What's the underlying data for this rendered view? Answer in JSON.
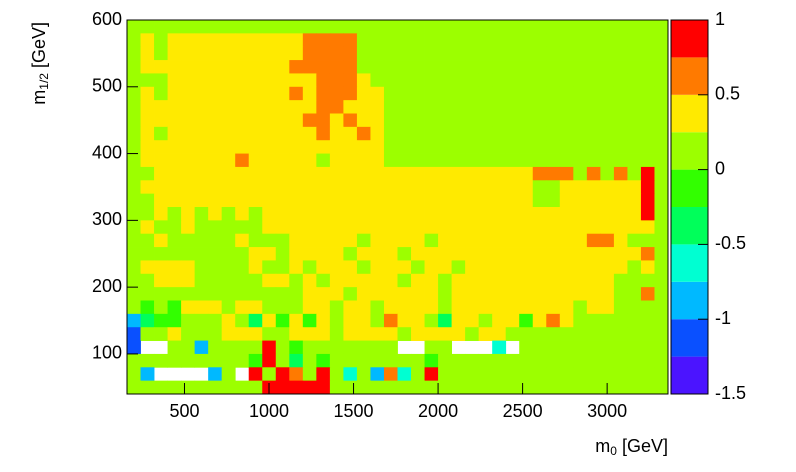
{
  "chart_data": {
    "type": "heatmap",
    "xlabel": {
      "text": "m",
      "sub": "0",
      "suffix": "[GeV]"
    },
    "ylabel": {
      "text": "m",
      "sub": "1/2",
      "suffix": "[GeV]"
    },
    "xlim": [
      160,
      3360
    ],
    "ylim": [
      40,
      600
    ],
    "xticks": [
      500,
      1000,
      1500,
      2000,
      2500,
      3000
    ],
    "yticks": [
      100,
      200,
      300,
      400,
      500,
      600
    ],
    "zlim": [
      -1.5,
      1
    ],
    "zticks": [
      -1.5,
      -1,
      -0.5,
      0,
      0.5,
      1
    ],
    "colors": [
      "#4b14ff",
      "#0a50ff",
      "#00b9ff",
      "#00ffd2",
      "#00ff5a",
      "#32ff00",
      "#9cff00",
      "#ffea00",
      "#ff7a00",
      "#ff0000"
    ],
    "z": [
      [
        0.1,
        0.1,
        0.1,
        0.1,
        0.1,
        0.1,
        0.1,
        0.1,
        0.1,
        0.1,
        0.1,
        0.1,
        0.1,
        0.1,
        0.1,
        0.1,
        0.1,
        0.1,
        0.1,
        0.1,
        0.1,
        0.1,
        0.1,
        0.1,
        0.1,
        0.1,
        0.1,
        0.1,
        0.1,
        0.1,
        0.1,
        0.1,
        0.1,
        0.1,
        0.1,
        0.1,
        0.1,
        0.1,
        0.1,
        0.1
      ],
      [
        0.1,
        0.4,
        0.1,
        0.4,
        0.4,
        0.4,
        0.4,
        0.4,
        0.4,
        0.4,
        0.4,
        0.4,
        0.4,
        0.6,
        0.6,
        0.6,
        0.6,
        0.1,
        0.1,
        0.1,
        0.1,
        0.1,
        0.1,
        0.1,
        0.1,
        0.1,
        0.1,
        0.1,
        0.1,
        0.1,
        0.1,
        0.1,
        0.1,
        0.1,
        0.1,
        0.1,
        0.1,
        0.1,
        0.1,
        0.1
      ],
      [
        0.1,
        0.4,
        0.1,
        0.4,
        0.4,
        0.4,
        0.4,
        0.4,
        0.4,
        0.4,
        0.4,
        0.4,
        0.4,
        0.6,
        0.6,
        0.6,
        0.6,
        0.1,
        0.1,
        0.1,
        0.1,
        0.1,
        0.1,
        0.1,
        0.1,
        0.1,
        0.1,
        0.1,
        0.1,
        0.1,
        0.1,
        0.1,
        0.1,
        0.1,
        0.1,
        0.1,
        0.1,
        0.1,
        0.1,
        0.1
      ],
      [
        0.1,
        0.4,
        0.4,
        0.4,
        0.4,
        0.4,
        0.4,
        0.4,
        0.4,
        0.4,
        0.4,
        0.4,
        0.6,
        0.6,
        0.6,
        0.6,
        0.6,
        0.1,
        0.1,
        0.1,
        0.1,
        0.1,
        0.1,
        0.1,
        0.1,
        0.1,
        0.1,
        0.1,
        0.1,
        0.1,
        0.1,
        0.1,
        0.1,
        0.1,
        0.1,
        0.1,
        0.1,
        0.1,
        0.1,
        0.1
      ],
      [
        0.1,
        0.1,
        0.1,
        0.4,
        0.4,
        0.4,
        0.4,
        0.4,
        0.4,
        0.4,
        0.4,
        0.4,
        0.4,
        0.4,
        0.6,
        0.6,
        0.6,
        0.4,
        0.1,
        0.1,
        0.1,
        0.1,
        0.1,
        0.1,
        0.1,
        0.1,
        0.1,
        0.1,
        0.1,
        0.1,
        0.1,
        0.1,
        0.1,
        0.1,
        0.1,
        0.1,
        0.1,
        0.1,
        0.1,
        0.1
      ],
      [
        0.1,
        0.4,
        0.1,
        0.4,
        0.4,
        0.4,
        0.4,
        0.4,
        0.4,
        0.4,
        0.4,
        0.4,
        0.6,
        0.4,
        0.6,
        0.6,
        0.6,
        0.4,
        0.4,
        0.1,
        0.1,
        0.1,
        0.1,
        0.1,
        0.1,
        0.1,
        0.1,
        0.1,
        0.1,
        0.1,
        0.1,
        0.1,
        0.1,
        0.1,
        0.1,
        0.1,
        0.1,
        0.1,
        0.1,
        0.1
      ],
      [
        0.1,
        0.4,
        0.4,
        0.4,
        0.4,
        0.4,
        0.4,
        0.4,
        0.4,
        0.4,
        0.4,
        0.4,
        0.4,
        0.4,
        0.6,
        0.6,
        0.4,
        0.4,
        0.4,
        0.1,
        0.1,
        0.1,
        0.1,
        0.1,
        0.1,
        0.1,
        0.1,
        0.1,
        0.1,
        0.1,
        0.1,
        0.1,
        0.1,
        0.1,
        0.1,
        0.1,
        0.1,
        0.1,
        0.1,
        0.1
      ],
      [
        0.1,
        0.4,
        0.4,
        0.4,
        0.4,
        0.4,
        0.4,
        0.4,
        0.4,
        0.4,
        0.4,
        0.4,
        0.4,
        0.6,
        0.6,
        0.4,
        0.6,
        0.4,
        0.4,
        0.1,
        0.1,
        0.1,
        0.1,
        0.1,
        0.1,
        0.1,
        0.1,
        0.1,
        0.1,
        0.1,
        0.1,
        0.1,
        0.1,
        0.1,
        0.1,
        0.1,
        0.1,
        0.1,
        0.1,
        0.1
      ],
      [
        0.1,
        0.4,
        0.1,
        0.4,
        0.4,
        0.4,
        0.4,
        0.4,
        0.4,
        0.4,
        0.4,
        0.4,
        0.4,
        0.4,
        0.6,
        0.4,
        0.4,
        0.6,
        0.4,
        0.1,
        0.1,
        0.1,
        0.1,
        0.1,
        0.1,
        0.1,
        0.1,
        0.1,
        0.1,
        0.1,
        0.1,
        0.1,
        0.1,
        0.1,
        0.1,
        0.1,
        0.1,
        0.1,
        0.1,
        0.1
      ],
      [
        0.1,
        0.4,
        0.4,
        0.4,
        0.4,
        0.4,
        0.4,
        0.4,
        0.4,
        0.4,
        0.4,
        0.4,
        0.4,
        0.4,
        0.4,
        0.4,
        0.4,
        0.4,
        0.4,
        0.1,
        0.1,
        0.1,
        0.1,
        0.1,
        0.1,
        0.1,
        0.1,
        0.1,
        0.1,
        0.1,
        0.1,
        0.1,
        0.1,
        0.1,
        0.1,
        0.1,
        0.1,
        0.1,
        0.1,
        0.1
      ],
      [
        0.1,
        0.4,
        0.4,
        0.4,
        0.4,
        0.4,
        0.4,
        0.4,
        0.6,
        0.4,
        0.4,
        0.4,
        0.4,
        0.4,
        0.1,
        0.4,
        0.4,
        0.4,
        0.4,
        0.1,
        0.1,
        0.1,
        0.1,
        0.1,
        0.1,
        0.1,
        0.1,
        0.1,
        0.1,
        0.1,
        0.1,
        0.1,
        0.1,
        0.1,
        0.1,
        0.1,
        0.1,
        0.1,
        0.1,
        0.1
      ],
      [
        0.1,
        0.1,
        0.4,
        0.4,
        0.4,
        0.4,
        0.4,
        0.4,
        0.4,
        0.4,
        0.4,
        0.4,
        0.4,
        0.4,
        0.4,
        0.4,
        0.4,
        0.4,
        0.4,
        0.4,
        0.4,
        0.4,
        0.4,
        0.4,
        0.4,
        0.4,
        0.4,
        0.4,
        0.4,
        0.4,
        0.6,
        0.6,
        0.6,
        0.1,
        0.6,
        0.1,
        0.6,
        0.1,
        0.9,
        0.1
      ],
      [
        0.1,
        0.4,
        0.4,
        0.4,
        0.4,
        0.4,
        0.4,
        0.4,
        0.4,
        0.4,
        0.4,
        0.4,
        0.4,
        0.4,
        0.4,
        0.4,
        0.4,
        0.4,
        0.4,
        0.4,
        0.4,
        0.4,
        0.4,
        0.4,
        0.4,
        0.4,
        0.4,
        0.4,
        0.4,
        0.4,
        0.1,
        0.1,
        0.4,
        0.4,
        0.4,
        0.4,
        0.4,
        0.4,
        0.9,
        0.1
      ],
      [
        0.1,
        0.1,
        0.4,
        0.4,
        0.4,
        0.4,
        0.4,
        0.4,
        0.4,
        0.4,
        0.4,
        0.4,
        0.4,
        0.4,
        0.4,
        0.4,
        0.4,
        0.4,
        0.4,
        0.4,
        0.4,
        0.4,
        0.4,
        0.4,
        0.4,
        0.4,
        0.4,
        0.4,
        0.4,
        0.4,
        0.1,
        0.1,
        0.4,
        0.4,
        0.4,
        0.4,
        0.4,
        0.4,
        0.9,
        0.1
      ],
      [
        0.1,
        0.1,
        0.4,
        0.1,
        0.4,
        0.1,
        0.4,
        0.1,
        0.4,
        0.1,
        0.4,
        0.4,
        0.4,
        0.4,
        0.4,
        0.4,
        0.4,
        0.4,
        0.4,
        0.4,
        0.4,
        0.4,
        0.4,
        0.4,
        0.4,
        0.4,
        0.4,
        0.4,
        0.4,
        0.4,
        0.4,
        0.4,
        0.4,
        0.4,
        0.4,
        0.4,
        0.4,
        0.4,
        0.9,
        0.1
      ],
      [
        0.1,
        0.4,
        0.1,
        0.1,
        0.4,
        0.1,
        0.1,
        0.1,
        0.1,
        0.1,
        0.4,
        0.4,
        0.4,
        0.4,
        0.4,
        0.4,
        0.4,
        0.4,
        0.4,
        0.4,
        0.4,
        0.4,
        0.4,
        0.4,
        0.4,
        0.4,
        0.4,
        0.4,
        0.4,
        0.4,
        0.4,
        0.4,
        0.4,
        0.4,
        0.4,
        0.4,
        0.4,
        0.4,
        0.4,
        0.1
      ],
      [
        0.1,
        0.1,
        0.4,
        0.1,
        0.1,
        0.1,
        0.1,
        0.1,
        0.4,
        0.1,
        0.1,
        0.1,
        0.4,
        0.4,
        0.4,
        0.4,
        0.4,
        0.1,
        0.4,
        0.4,
        0.4,
        0.4,
        0.1,
        0.4,
        0.4,
        0.4,
        0.4,
        0.4,
        0.4,
        0.4,
        0.4,
        0.4,
        0.4,
        0.4,
        0.6,
        0.6,
        0.4,
        0.1,
        0.1,
        0.1
      ],
      [
        0.1,
        0.1,
        0.1,
        0.1,
        0.1,
        0.1,
        0.1,
        0.1,
        0.1,
        0.4,
        0.4,
        0.1,
        0.4,
        0.4,
        0.4,
        0.4,
        0.1,
        0.4,
        0.4,
        0.4,
        0.1,
        0.4,
        0.4,
        0.4,
        0.4,
        0.4,
        0.4,
        0.4,
        0.4,
        0.4,
        0.4,
        0.4,
        0.4,
        0.4,
        0.4,
        0.4,
        0.4,
        0.4,
        0.6,
        0.1
      ],
      [
        0.1,
        0.4,
        0.4,
        0.4,
        0.4,
        0.1,
        0.1,
        0.1,
        0.1,
        0.4,
        0.1,
        0.1,
        0.4,
        0.1,
        0.4,
        0.4,
        0.4,
        0.1,
        0.4,
        0.4,
        0.4,
        0.1,
        0.4,
        0.4,
        0.1,
        0.4,
        0.4,
        0.4,
        0.4,
        0.4,
        0.4,
        0.4,
        0.4,
        0.4,
        0.4,
        0.4,
        0.4,
        0.1,
        0.4,
        0.1
      ],
      [
        0.1,
        0.1,
        0.4,
        0.4,
        0.4,
        0.1,
        0.1,
        0.1,
        0.1,
        0.1,
        0.4,
        0.4,
        0.1,
        0.4,
        0.1,
        0.4,
        0.4,
        0.4,
        0.4,
        0.4,
        0.1,
        0.4,
        0.4,
        0.1,
        0.4,
        0.4,
        0.4,
        0.4,
        0.4,
        0.4,
        0.4,
        0.4,
        0.4,
        0.4,
        0.4,
        0.4,
        0.1,
        0.1,
        0.1,
        0.1
      ],
      [
        0.1,
        0.1,
        0.1,
        0.1,
        0.1,
        0.1,
        0.1,
        0.1,
        0.1,
        0.1,
        0.1,
        0.1,
        0.1,
        0.4,
        0.4,
        0.4,
        0.1,
        0.4,
        0.4,
        0.4,
        0.4,
        0.4,
        0.4,
        0.1,
        0.4,
        0.4,
        0.4,
        0.4,
        0.4,
        0.4,
        0.4,
        0.4,
        0.4,
        0.4,
        0.4,
        0.4,
        0.1,
        0.1,
        0.6,
        0.1
      ],
      [
        0.1,
        -0.1,
        0.1,
        -0.1,
        0.4,
        0.4,
        0.4,
        0.1,
        0.4,
        0.4,
        0.1,
        0.1,
        0.1,
        0.4,
        0.4,
        0.1,
        0.4,
        0.4,
        0.1,
        0.4,
        0.4,
        0.4,
        0.4,
        0.1,
        0.4,
        0.4,
        0.4,
        0.4,
        0.4,
        0.4,
        0.4,
        0.4,
        0.4,
        0.1,
        0.4,
        0.4,
        0.1,
        0.1,
        0.1,
        0.1
      ],
      [
        -0.9,
        -0.4,
        -0.1,
        -0.1,
        0.1,
        0.1,
        0.1,
        0.4,
        0.1,
        -0.4,
        0.4,
        -0.1,
        0.4,
        -0.1,
        0.4,
        0.1,
        0.4,
        0.4,
        0.1,
        0.6,
        0.4,
        0.4,
        0.1,
        -0.4,
        0.4,
        0.4,
        0.1,
        0.4,
        0.4,
        -0.1,
        0.4,
        0.6,
        0.4,
        0.1,
        0.1,
        0.1,
        0.1,
        0.1,
        0.1,
        0.1
      ],
      [
        -1.1,
        0.1,
        0.1,
        0.4,
        0.1,
        0.1,
        0.1,
        0.4,
        0.4,
        0.4,
        0.1,
        0.1,
        0.4,
        0.4,
        0.4,
        0.1,
        0.4,
        0.4,
        0.4,
        0.4,
        0.1,
        0.4,
        0.4,
        0.4,
        0.4,
        0.1,
        0.4,
        0.4,
        0.1,
        0.1,
        0.1,
        0.1,
        0.1,
        0.1,
        0.1,
        0.1,
        0.1,
        0.1,
        0.1,
        0.1
      ],
      [
        -1.1,
        null,
        null,
        0.1,
        0.1,
        -0.9,
        0.1,
        0.1,
        0.1,
        0.1,
        0.9,
        0.1,
        -0.1,
        0.1,
        0.1,
        0.1,
        0.1,
        0.1,
        0.1,
        0.1,
        null,
        null,
        0.1,
        0.1,
        null,
        null,
        null,
        -0.6,
        null,
        0.1,
        0.1,
        0.1,
        0.1,
        0.1,
        0.1,
        0.1,
        0.1,
        0.1,
        0.1,
        0.1
      ],
      [
        0.1,
        0.1,
        0.1,
        0.1,
        0.1,
        0.1,
        0.1,
        0.1,
        0.1,
        -0.1,
        0.9,
        0.1,
        -0.4,
        0.1,
        -0.1,
        0.1,
        0.1,
        0.1,
        0.1,
        0.1,
        0.1,
        0.1,
        -0.1,
        0.1,
        0.1,
        0.1,
        0.1,
        0.1,
        0.1,
        0.1,
        0.1,
        0.1,
        0.1,
        0.1,
        0.1,
        0.1,
        0.1,
        0.1,
        0.1,
        0.1
      ],
      [
        0.1,
        -0.9,
        null,
        null,
        null,
        null,
        -0.9,
        0.1,
        null,
        0.9,
        0.1,
        0.9,
        0.6,
        0.1,
        0.9,
        0.1,
        -0.6,
        0.1,
        -0.9,
        0.6,
        -0.6,
        0.1,
        0.9,
        0.1,
        0.1,
        0.1,
        0.1,
        0.1,
        0.1,
        0.1,
        0.1,
        0.1,
        0.1,
        0.1,
        0.1,
        0.1,
        0.1,
        0.1,
        0.1,
        0.1
      ],
      [
        0.1,
        0.1,
        0.1,
        0.1,
        0.1,
        0.1,
        0.1,
        0.1,
        0.1,
        0.1,
        0.9,
        0.9,
        0.9,
        0.9,
        0.9,
        0.1,
        0.1,
        0.1,
        0.1,
        0.1,
        0.1,
        0.1,
        0.1,
        0.1,
        0.1,
        0.1,
        0.1,
        0.1,
        0.1,
        0.1,
        0.1,
        0.1,
        0.1,
        0.1,
        0.1,
        0.1,
        0.1,
        0.1,
        0.1,
        0.1
      ]
    ]
  }
}
